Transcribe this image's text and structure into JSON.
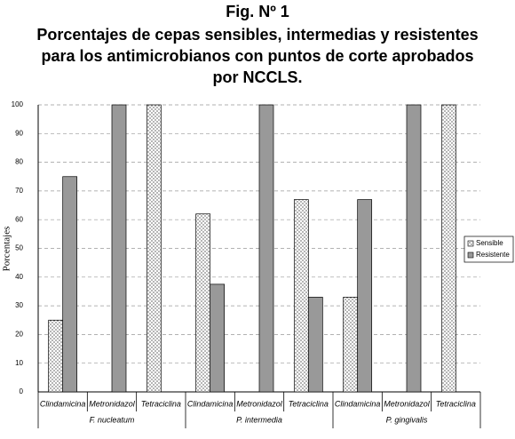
{
  "chart_data": {
    "type": "bar",
    "title": "Fig. Nº 1",
    "subtitle": [
      "Porcentajes de cepas sensibles, intermedias y resistentes",
      "para los antimicrobianos con puntos de corte aprobados",
      "por NCCLS."
    ],
    "y_label": "Porcentajes",
    "categories": [
      "Clindamicina",
      "Metronidazol",
      "Tetraciclina",
      "Clindamicina",
      "Metronidazol",
      "Tetraciclina",
      "Clindamicina",
      "Metronidazol",
      "Tetraciclina"
    ],
    "groups": [
      "F. nucleatum",
      "P. intermedia",
      "P. gingivalis"
    ],
    "series": [
      {
        "name": "Sensible",
        "color": "#ffffff",
        "pattern": "dots",
        "values": [
          25,
          0,
          100,
          62,
          0,
          67,
          33,
          0,
          100
        ]
      },
      {
        "name": "Resistente",
        "color": "#999999",
        "values": [
          75,
          100,
          0,
          37.5,
          100,
          33,
          67,
          100,
          0
        ]
      }
    ],
    "ylim": [
      0,
      100
    ],
    "yticks": [
      0,
      10,
      20,
      30,
      40,
      50,
      60,
      70,
      80,
      90,
      100
    ],
    "grid": true,
    "legend": "right"
  }
}
